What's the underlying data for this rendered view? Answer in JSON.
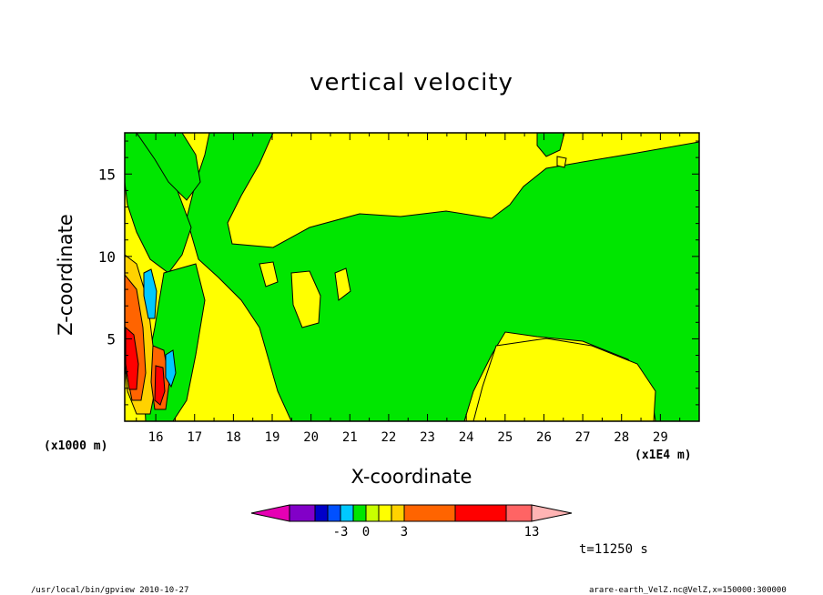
{
  "chart_data": {
    "type": "heatmap",
    "title": "vertical velocity",
    "xlabel": "X-coordinate",
    "ylabel": "Z-coordinate",
    "x_unit_left": "(x1000 m)",
    "x_unit_right": "(x1E4 m)",
    "xlim": [
      15.2,
      30.0
    ],
    "ylim": [
      0.0,
      17.5
    ],
    "x_ticks": [
      "16",
      "17",
      "18",
      "19",
      "20",
      "21",
      "22",
      "23",
      "24",
      "25",
      "26",
      "27",
      "28",
      "29"
    ],
    "y_ticks": [
      "5",
      "10",
      "15"
    ],
    "legend": {
      "colors": [
        "#e600b4",
        "#8200c8",
        "#0000c8",
        "#0050ff",
        "#00c8ff",
        "#00e600",
        "#c8ff00",
        "#ffff00",
        "#ffd200",
        "#ff6400",
        "#ff0000",
        "#ff6464",
        "#ffb4b4"
      ],
      "labels": [
        "-3",
        "0",
        "3",
        "13"
      ]
    },
    "time_label": "t=11250 s"
  },
  "footer": {
    "left": "/usr/local/bin/gpview  2010-10-27",
    "right": "arare-earth_VelZ.nc@VelZ,x=150000:300000"
  }
}
